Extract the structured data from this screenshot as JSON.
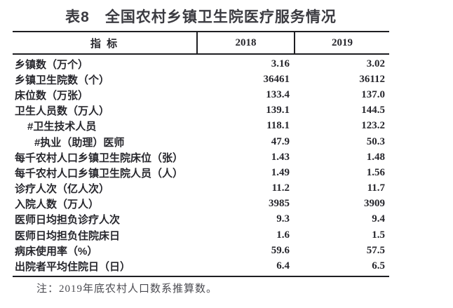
{
  "title": "表8　全国农村乡镇卫生院医疗服务情况",
  "table": {
    "header": {
      "indicator": "指 标",
      "col2018": "2018",
      "col2019": "2019"
    },
    "rows": [
      {
        "label": "乡镇数（万个）",
        "indent": 0,
        "v2018": "3.16",
        "v2019": "3.02"
      },
      {
        "label": "乡镇卫生院数（个）",
        "indent": 0,
        "v2018": "36461",
        "v2019": "36112"
      },
      {
        "label": "床位数（万张）",
        "indent": 0,
        "v2018": "133.4",
        "v2019": "137.0"
      },
      {
        "label": "卫生人员数（万人）",
        "indent": 0,
        "v2018": "139.1",
        "v2019": "144.5"
      },
      {
        "label": "#卫生技术人员",
        "indent": 1,
        "v2018": "118.1",
        "v2019": "123.2"
      },
      {
        "label": "#执业（助理）医师",
        "indent": 2,
        "v2018": "47.9",
        "v2019": "50.3"
      },
      {
        "label": "每千农村人口乡镇卫生院床位（张）",
        "indent": 0,
        "v2018": "1.43",
        "v2019": "1.48"
      },
      {
        "label": "每千农村人口乡镇卫生院人员（人）",
        "indent": 0,
        "v2018": "1.49",
        "v2019": "1.56"
      },
      {
        "label": "诊疗人次（亿人次）",
        "indent": 0,
        "v2018": "11.2",
        "v2019": "11.7"
      },
      {
        "label": "入院人数（万人）",
        "indent": 0,
        "v2018": "3985",
        "v2019": "3909"
      },
      {
        "label": "医师日均担负诊疗人次",
        "indent": 0,
        "v2018": "9.3",
        "v2019": "9.4"
      },
      {
        "label": "医师日均担负住院床日",
        "indent": 0,
        "v2018": "1.6",
        "v2019": "1.5"
      },
      {
        "label": "病床使用率（%）",
        "indent": 0,
        "v2018": "59.6",
        "v2019": "57.5"
      },
      {
        "label": "出院者平均住院日（日）",
        "indent": 0,
        "v2018": "6.4",
        "v2019": "6.5"
      }
    ]
  },
  "note": "注：2019年底农村人口数系推算数。",
  "colors": {
    "rule": "#1e1e22",
    "title_text": "#3b3b41",
    "body_text": "#27272d",
    "note_text": "#4b4b51"
  }
}
